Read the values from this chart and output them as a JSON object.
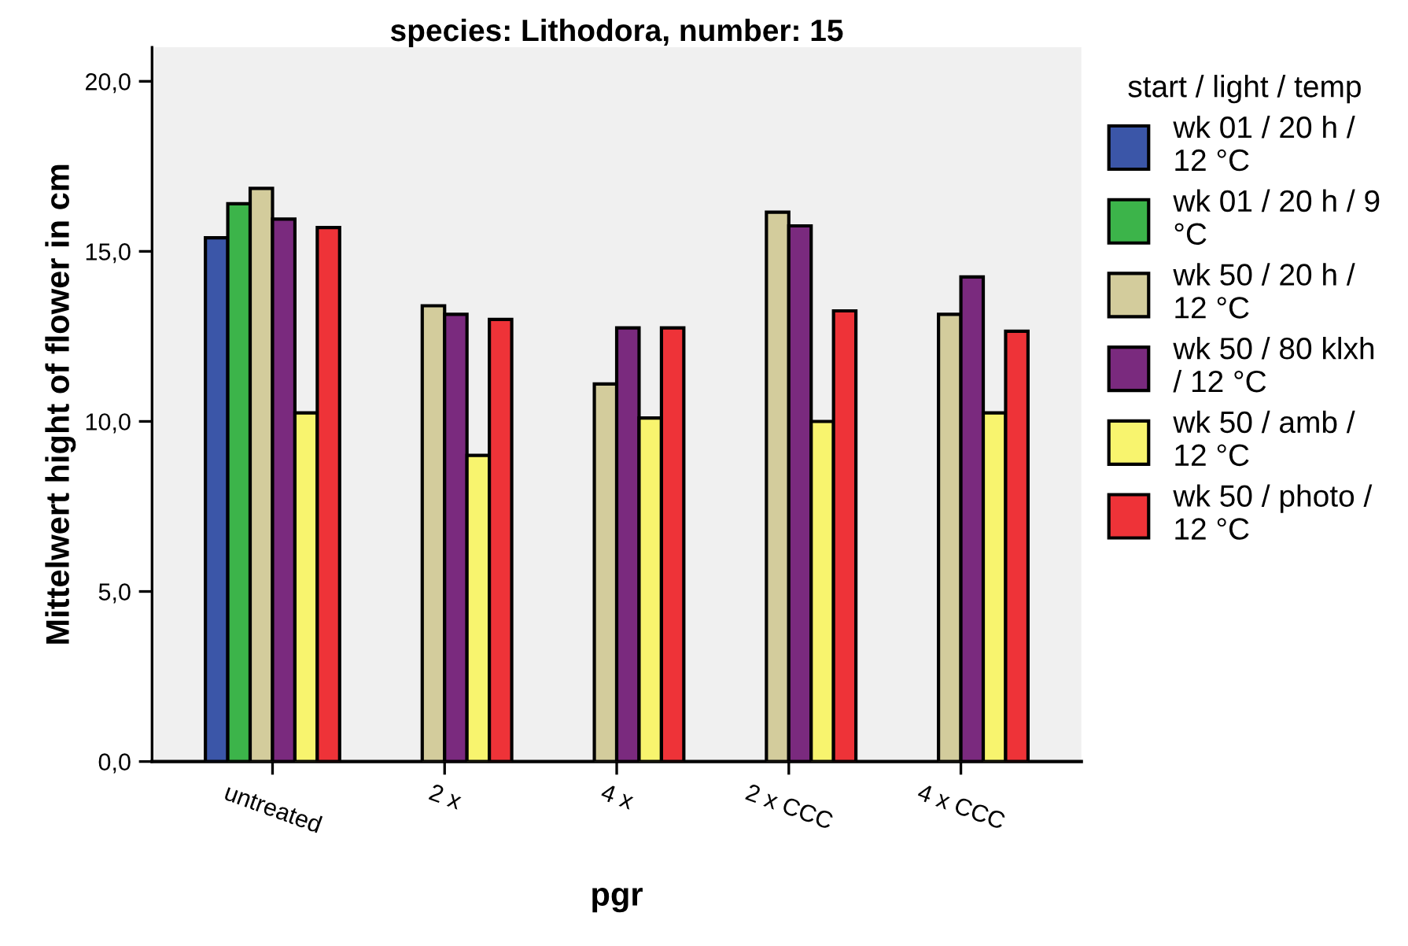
{
  "chart_data": {
    "type": "bar",
    "title": "species: Lithodora, number: 15",
    "xlabel": "pgr",
    "ylabel": "Mittelwert hight of flower in cm",
    "legend_title": "start / light / temp",
    "legend": "right",
    "grid": false,
    "categories": [
      "untreated",
      "2 x",
      "4 x",
      "2 x CCC",
      "4 x CCC"
    ],
    "ylim": [
      0,
      21
    ],
    "yticks": [
      {
        "value": 0,
        "label": "0,0"
      },
      {
        "value": 5,
        "label": "5,0"
      },
      {
        "value": 10,
        "label": "10,0"
      },
      {
        "value": 15,
        "label": "15,0"
      },
      {
        "value": 20,
        "label": "20,0"
      }
    ],
    "series": [
      {
        "name": "wk 01 / 20 h /\n12 °C",
        "color": "#3b56a8",
        "values": [
          15.4,
          null,
          null,
          null,
          null
        ]
      },
      {
        "name": "wk 01 / 20 h / 9\n°C",
        "color": "#3cb44a",
        "values": [
          16.4,
          null,
          null,
          null,
          null
        ]
      },
      {
        "name": "wk 50 / 20 h /\n12 °C",
        "color": "#d3cc9c",
        "values": [
          16.85,
          13.4,
          11.1,
          16.15,
          13.15
        ]
      },
      {
        "name": "wk 50 / 80 klxh\n/ 12 °C",
        "color": "#7a2a7e",
        "values": [
          15.95,
          13.15,
          12.75,
          15.75,
          14.25
        ]
      },
      {
        "name": "wk 50 / amb /\n12 °C",
        "color": "#f8f46e",
        "values": [
          10.25,
          9.0,
          10.1,
          10.0,
          10.25
        ]
      },
      {
        "name": "wk 50 / photo /\n12 °C",
        "color": "#ee3338",
        "values": [
          15.7,
          13.0,
          12.75,
          13.25,
          12.65
        ]
      }
    ]
  }
}
